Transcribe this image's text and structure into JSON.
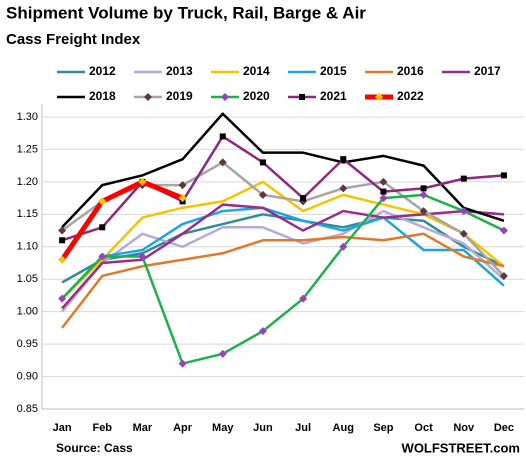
{
  "chart_data": {
    "type": "line",
    "title": "Shipment Volume by Truck, Rail, Barge & Air",
    "subtitle": "Cass Freight Index",
    "source": "Source: Cass",
    "watermark": "WOLFSTREET.com",
    "categories": [
      "Jan",
      "Feb",
      "Mar",
      "Apr",
      "May",
      "Jun",
      "Jul",
      "Aug",
      "Sep",
      "Oct",
      "Nov",
      "Dec"
    ],
    "ylim": [
      0.85,
      1.32
    ],
    "yticks": [
      0.85,
      {
        "value": 0.9,
        "label": "0.90"
      },
      0.95,
      {
        "value": 1.0,
        "label": "1.00"
      },
      1.05,
      {
        "value": 1.1,
        "label": "1.10"
      },
      1.15,
      {
        "value": 1.2,
        "label": "1.20"
      },
      1.25,
      {
        "value": 1.3,
        "label": "1.30"
      }
    ],
    "grid": true,
    "series": [
      {
        "name": "2012",
        "color": "#2e8b99",
        "values": [
          1.045,
          1.08,
          1.09,
          1.12,
          1.135,
          1.15,
          1.14,
          1.13,
          1.145,
          1.14,
          1.1,
          1.07
        ]
      },
      {
        "name": "2013",
        "color": "#b8a9d6",
        "values": [
          1.0,
          1.075,
          1.12,
          1.1,
          1.13,
          1.13,
          1.105,
          1.12,
          1.155,
          1.13,
          1.105,
          1.05
        ]
      },
      {
        "name": "2014",
        "color": "#f5c400",
        "values": [
          1.02,
          1.08,
          1.145,
          1.16,
          1.17,
          1.2,
          1.155,
          1.18,
          1.165,
          1.15,
          1.12,
          1.07
        ]
      },
      {
        "name": "2015",
        "color": "#1aa7e0",
        "values": [
          1.02,
          1.085,
          1.095,
          1.135,
          1.155,
          1.16,
          1.14,
          1.125,
          1.145,
          1.095,
          1.095,
          1.04
        ]
      },
      {
        "name": "2016",
        "color": "#e07a2a",
        "values": [
          0.975,
          1.055,
          1.07,
          1.08,
          1.09,
          1.11,
          1.11,
          1.115,
          1.11,
          1.12,
          1.085,
          1.07
        ]
      },
      {
        "name": "2017",
        "color": "#9b2c8a",
        "values": [
          1.005,
          1.075,
          1.08,
          1.12,
          1.165,
          1.16,
          1.125,
          1.155,
          1.145,
          1.15,
          1.155,
          1.15
        ]
      },
      {
        "name": "2018",
        "color": "#000000",
        "values": [
          1.13,
          1.195,
          1.21,
          1.235,
          1.305,
          1.245,
          1.245,
          1.23,
          1.24,
          1.225,
          1.16,
          1.14
        ]
      },
      {
        "name": "2019",
        "color": "#a6a6a6",
        "marker": "diamond",
        "marker_color": "#5a3a3a",
        "values": [
          1.125,
          1.17,
          1.195,
          1.195,
          1.23,
          1.18,
          1.17,
          1.19,
          1.2,
          1.155,
          1.12,
          1.055
        ]
      },
      {
        "name": "2020",
        "color": "#1fb04a",
        "marker": "diamond",
        "marker_color": "#9b3fc0",
        "values": [
          1.02,
          1.085,
          1.085,
          0.92,
          0.935,
          0.97,
          1.02,
          1.1,
          1.175,
          1.18,
          1.155,
          1.125
        ]
      },
      {
        "name": "2021",
        "color": "#8e2a7e",
        "marker": "square",
        "marker_color": "#000000",
        "values": [
          1.11,
          1.13,
          1.2,
          1.17,
          1.27,
          1.23,
          1.175,
          1.235,
          1.185,
          1.19,
          1.205,
          1.21
        ]
      },
      {
        "name": "2022",
        "color": "#ff0000",
        "marker": "diamond",
        "marker_color": "#f5c400",
        "width": 5,
        "values": [
          1.08,
          1.17,
          1.2,
          1.175,
          null,
          null,
          null,
          null,
          null,
          null,
          null,
          null
        ]
      }
    ]
  }
}
